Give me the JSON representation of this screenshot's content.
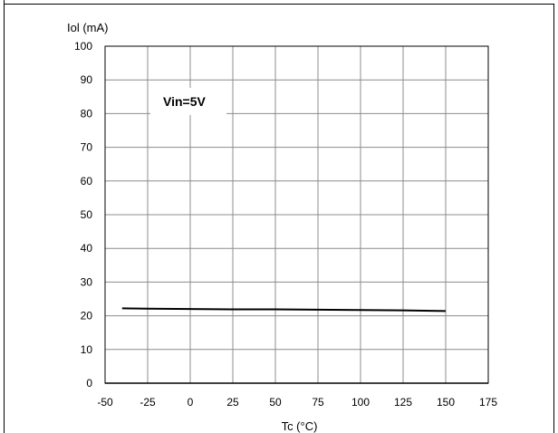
{
  "chart_data": {
    "type": "line",
    "ylabel": "Iol (mA)",
    "xlabel": "Tc (°C)",
    "xlim": [
      -50,
      175
    ],
    "ylim": [
      0,
      100
    ],
    "x_ticks": [
      -50,
      -25,
      0,
      25,
      50,
      75,
      100,
      125,
      150,
      175
    ],
    "y_ticks": [
      0,
      10,
      20,
      30,
      40,
      50,
      60,
      70,
      80,
      90,
      100
    ],
    "grid": true,
    "annotation": "Vin=5V",
    "series": [
      {
        "color": "#000000",
        "x": [
          -40,
          -25,
          0,
          25,
          50,
          75,
          100,
          125,
          150
        ],
        "y": [
          22.2,
          22.1,
          22.0,
          21.9,
          21.9,
          21.8,
          21.7,
          21.6,
          21.4
        ]
      }
    ]
  }
}
